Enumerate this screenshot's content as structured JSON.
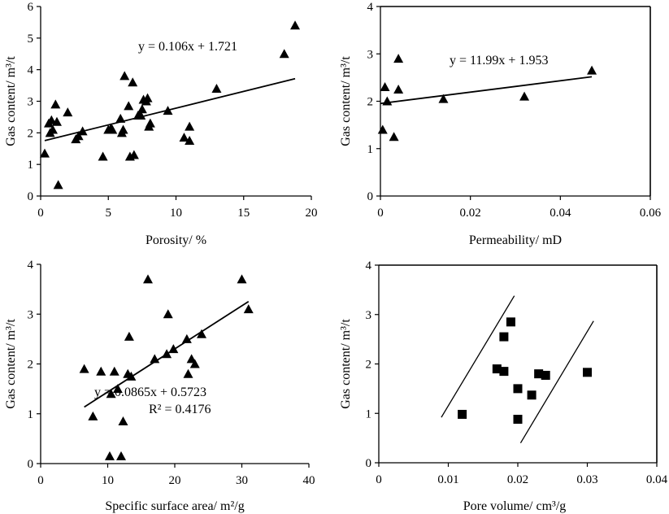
{
  "chart_data": [
    {
      "id": "porosity",
      "type": "scatter",
      "xlabel": "Porosity/ %",
      "ylabel": "Gas content/ m³/t",
      "xlim": [
        0,
        20
      ],
      "ylim": [
        0,
        6
      ],
      "xticks": [
        "0",
        "5",
        "10",
        "15",
        "20"
      ],
      "yticks": [
        "0",
        "1",
        "2",
        "3",
        "4",
        "5",
        "6"
      ],
      "marker": "triangle",
      "points": [
        [
          0.3,
          1.35
        ],
        [
          0.6,
          2.3
        ],
        [
          0.7,
          2.0
        ],
        [
          0.8,
          2.4
        ],
        [
          0.9,
          2.1
        ],
        [
          1.1,
          2.9
        ],
        [
          1.2,
          2.35
        ],
        [
          1.3,
          0.35
        ],
        [
          2.0,
          2.65
        ],
        [
          2.6,
          1.8
        ],
        [
          2.8,
          1.9
        ],
        [
          3.1,
          2.05
        ],
        [
          4.6,
          1.25
        ],
        [
          5.0,
          2.1
        ],
        [
          5.2,
          2.15
        ],
        [
          5.3,
          2.1
        ],
        [
          5.9,
          2.45
        ],
        [
          6.0,
          2.0
        ],
        [
          6.1,
          2.1
        ],
        [
          6.2,
          3.8
        ],
        [
          6.5,
          2.85
        ],
        [
          6.6,
          1.25
        ],
        [
          6.8,
          3.6
        ],
        [
          6.9,
          1.3
        ],
        [
          7.2,
          2.55
        ],
        [
          7.4,
          2.55
        ],
        [
          7.5,
          2.75
        ],
        [
          7.6,
          3.05
        ],
        [
          7.8,
          3.0
        ],
        [
          7.9,
          3.1
        ],
        [
          8.0,
          2.2
        ],
        [
          8.1,
          2.3
        ],
        [
          9.4,
          2.7
        ],
        [
          10.6,
          1.85
        ],
        [
          11.0,
          1.75
        ],
        [
          11.0,
          2.2
        ],
        [
          13.0,
          3.4
        ],
        [
          18.0,
          4.5
        ],
        [
          18.8,
          5.4
        ]
      ],
      "trendline": {
        "slope": 0.106,
        "intercept": 1.721,
        "x_from": 0.3,
        "x_to": 18.8
      },
      "equation": "y = 0.106x + 1.721",
      "frame": "open"
    },
    {
      "id": "permeability",
      "type": "scatter",
      "xlabel": "Permeability/ mD",
      "ylabel": "Gas content/ m³/t",
      "xlim": [
        0,
        0.06
      ],
      "ylim": [
        0,
        4
      ],
      "xticks": [
        "0",
        "0.02",
        "0.04",
        "0.06"
      ],
      "yticks": [
        "0",
        "1",
        "2",
        "3",
        "4"
      ],
      "marker": "triangle",
      "points": [
        [
          0.0005,
          1.4
        ],
        [
          0.001,
          2.3
        ],
        [
          0.0015,
          2.0
        ],
        [
          0.003,
          1.25
        ],
        [
          0.004,
          2.25
        ],
        [
          0.004,
          2.9
        ],
        [
          0.014,
          2.05
        ],
        [
          0.032,
          2.1
        ],
        [
          0.047,
          2.65
        ]
      ],
      "trendline": {
        "slope": 11.99,
        "intercept": 1.953,
        "x_from": 0,
        "x_to": 0.047
      },
      "equation": "y = 11.99x + 1.953",
      "frame": "box"
    },
    {
      "id": "surface",
      "type": "scatter",
      "xlabel": "Specific surface area/ m²/g",
      "ylabel": "Gas content/ m³/t",
      "xlim": [
        0,
        40
      ],
      "ylim": [
        0,
        4
      ],
      "xticks": [
        "0",
        "10",
        "20",
        "30",
        "40"
      ],
      "yticks": [
        "0",
        "1",
        "2",
        "3",
        "4"
      ],
      "marker": "triangle",
      "points": [
        [
          6.5,
          1.9
        ],
        [
          7.8,
          0.95
        ],
        [
          9.0,
          1.85
        ],
        [
          10.3,
          0.15
        ],
        [
          10.5,
          1.4
        ],
        [
          11.0,
          1.85
        ],
        [
          11.5,
          1.5
        ],
        [
          12.0,
          0.15
        ],
        [
          12.3,
          0.85
        ],
        [
          13.0,
          1.8
        ],
        [
          13.2,
          2.55
        ],
        [
          13.5,
          1.75
        ],
        [
          16.0,
          3.7
        ],
        [
          17.0,
          2.1
        ],
        [
          18.8,
          2.2
        ],
        [
          19.0,
          3.0
        ],
        [
          19.8,
          2.3
        ],
        [
          21.8,
          2.5
        ],
        [
          22.0,
          1.8
        ],
        [
          22.5,
          2.1
        ],
        [
          23.0,
          2.0
        ],
        [
          24.0,
          2.6
        ],
        [
          30.0,
          3.7
        ],
        [
          31.0,
          3.1
        ]
      ],
      "trendline": {
        "slope": 0.0865,
        "intercept": 0.5723,
        "x_from": 6.5,
        "x_to": 31
      },
      "equation": "y = 0.0865x + 0.5723",
      "r2": "R² = 0.4176",
      "frame": "open"
    },
    {
      "id": "pore",
      "type": "scatter",
      "xlabel": "Pore volume/ cm³/g",
      "ylabel": "Gas content/ m³/t",
      "xlim": [
        0,
        0.04
      ],
      "ylim": [
        0,
        4
      ],
      "xticks": [
        "0",
        "0.01",
        "0.02",
        "0.03",
        "0.04"
      ],
      "yticks": [
        "0",
        "1",
        "2",
        "3",
        "4"
      ],
      "marker": "square",
      "points": [
        [
          0.012,
          0.98
        ],
        [
          0.017,
          1.9
        ],
        [
          0.018,
          2.55
        ],
        [
          0.018,
          1.85
        ],
        [
          0.019,
          2.85
        ],
        [
          0.02,
          1.5
        ],
        [
          0.02,
          0.88
        ],
        [
          0.022,
          1.37
        ],
        [
          0.023,
          1.8
        ],
        [
          0.024,
          1.77
        ],
        [
          0.03,
          1.83
        ]
      ],
      "bounding_lines": [
        {
          "from": [
            0.009,
            0.92
          ],
          "to": [
            0.0195,
            3.38
          ]
        },
        {
          "from": [
            0.0204,
            0.4
          ],
          "to": [
            0.0309,
            2.87
          ]
        }
      ],
      "frame": "box"
    }
  ]
}
